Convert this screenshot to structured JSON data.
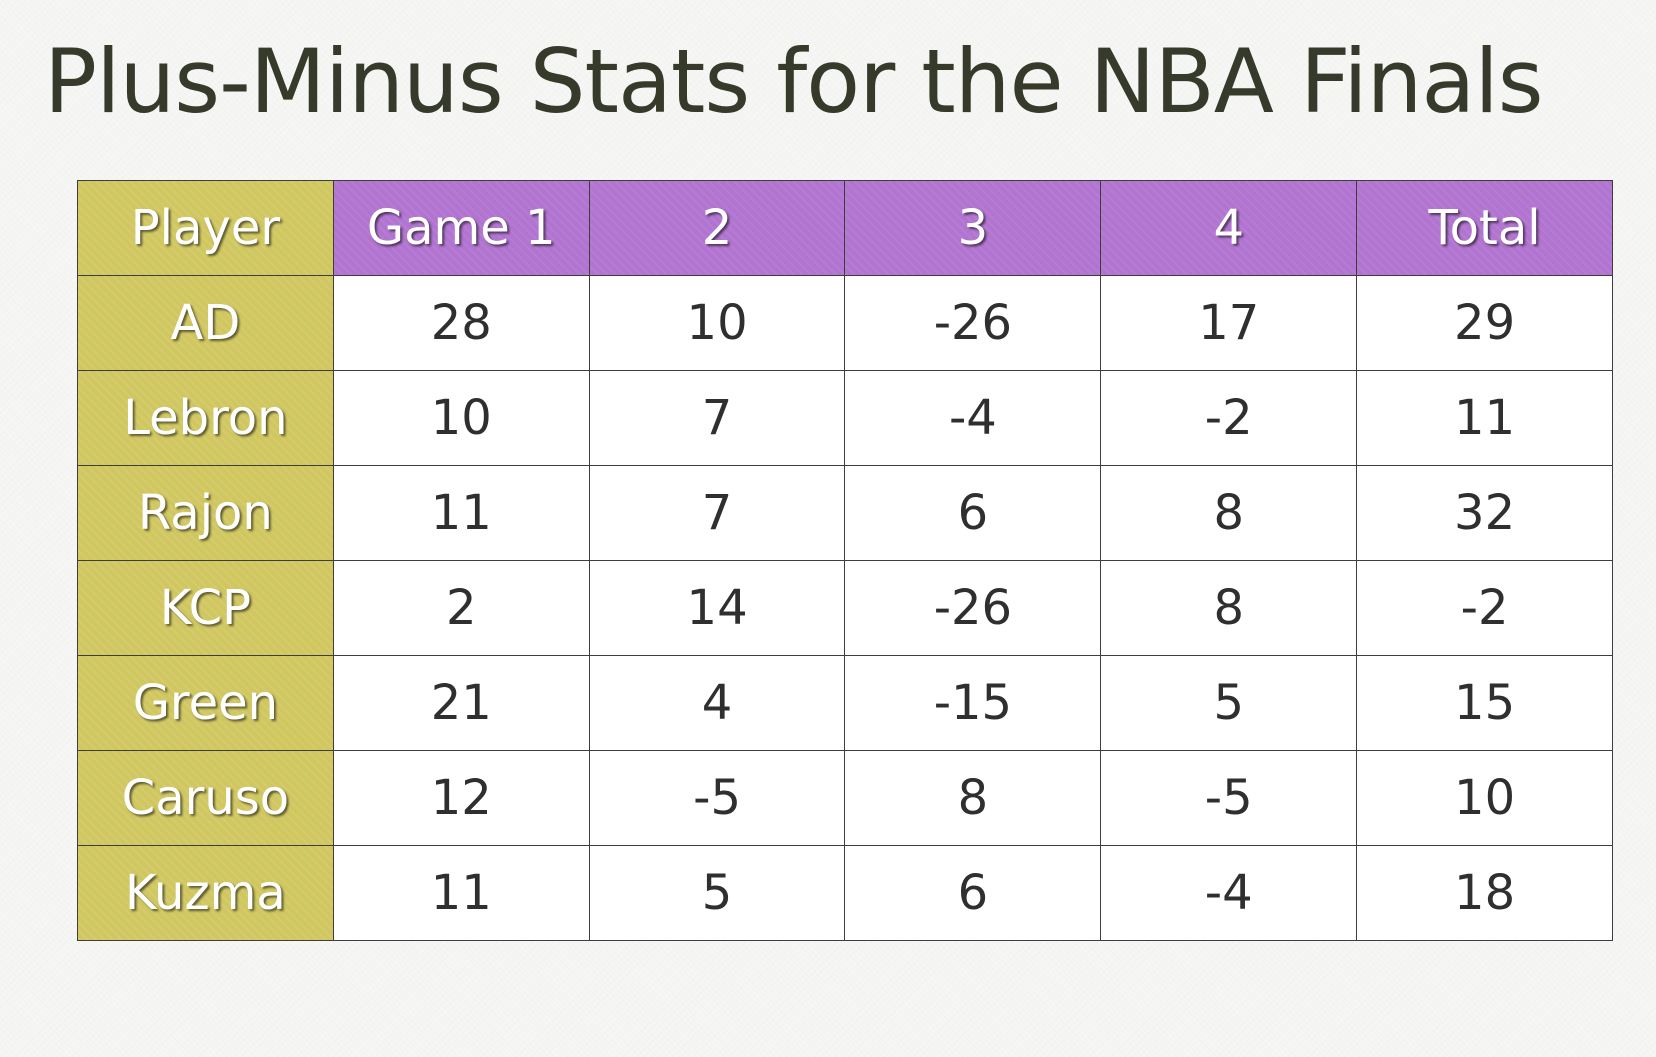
{
  "title": "Plus-Minus Stats for the NBA Finals",
  "colors": {
    "header_bg": "#b174d0",
    "player_bg": "#d0c761",
    "title_text": "#363a2a"
  },
  "table": {
    "headers": [
      "Player",
      "Game 1",
      "2",
      "3",
      "4",
      "Total"
    ],
    "rows": [
      {
        "player": "AD",
        "values": [
          "28",
          "10",
          "-26",
          "17",
          "29"
        ]
      },
      {
        "player": "Lebron",
        "values": [
          "10",
          "7",
          "-4",
          "-2",
          "11"
        ]
      },
      {
        "player": "Rajon",
        "values": [
          "11",
          "7",
          "6",
          "8",
          "32"
        ]
      },
      {
        "player": "KCP",
        "values": [
          "2",
          "14",
          "-26",
          "8",
          "-2"
        ]
      },
      {
        "player": "Green",
        "values": [
          "21",
          "4",
          "-15",
          "5",
          "15"
        ]
      },
      {
        "player": "Caruso",
        "values": [
          "12",
          "-5",
          "8",
          "-5",
          "10"
        ]
      },
      {
        "player": "Kuzma",
        "values": [
          "11",
          "5",
          "6",
          "-4",
          "18"
        ]
      }
    ]
  }
}
